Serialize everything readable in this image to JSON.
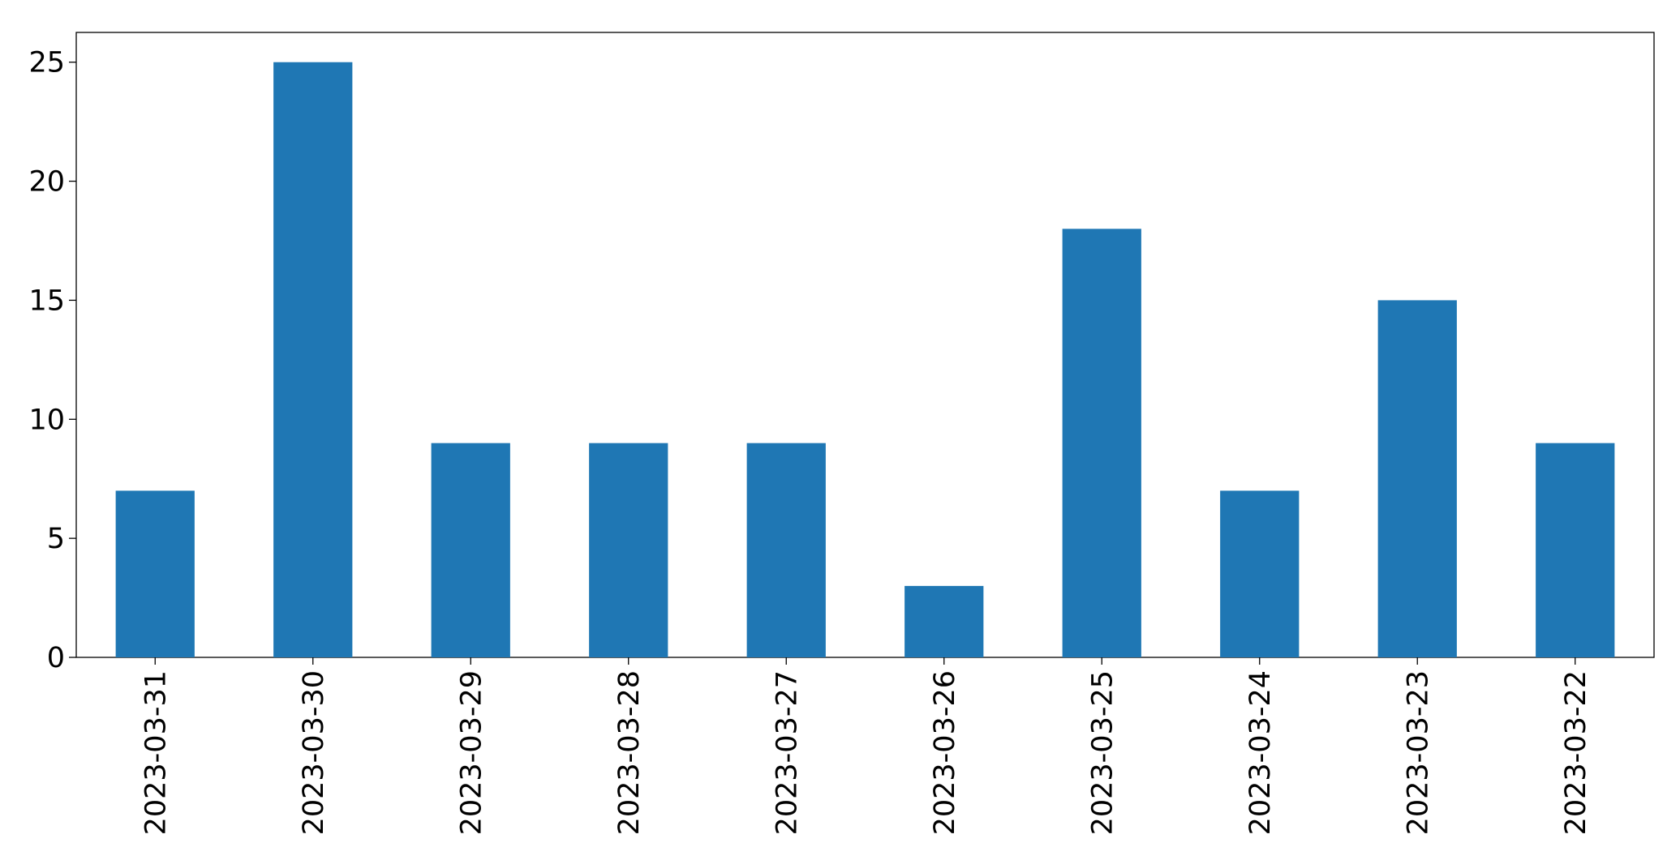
{
  "chart_data": {
    "type": "bar",
    "categories": [
      "2023-03-31",
      "2023-03-30",
      "2023-03-29",
      "2023-03-28",
      "2023-03-27",
      "2023-03-26",
      "2023-03-25",
      "2023-03-24",
      "2023-03-23",
      "2023-03-22"
    ],
    "values": [
      7,
      25,
      9,
      9,
      9,
      3,
      18,
      7,
      15,
      9
    ],
    "color": "#1f77b4",
    "ylim": [
      0,
      26.25
    ],
    "yticks": [
      0,
      5,
      10,
      15,
      20,
      25
    ],
    "grid": false
  }
}
